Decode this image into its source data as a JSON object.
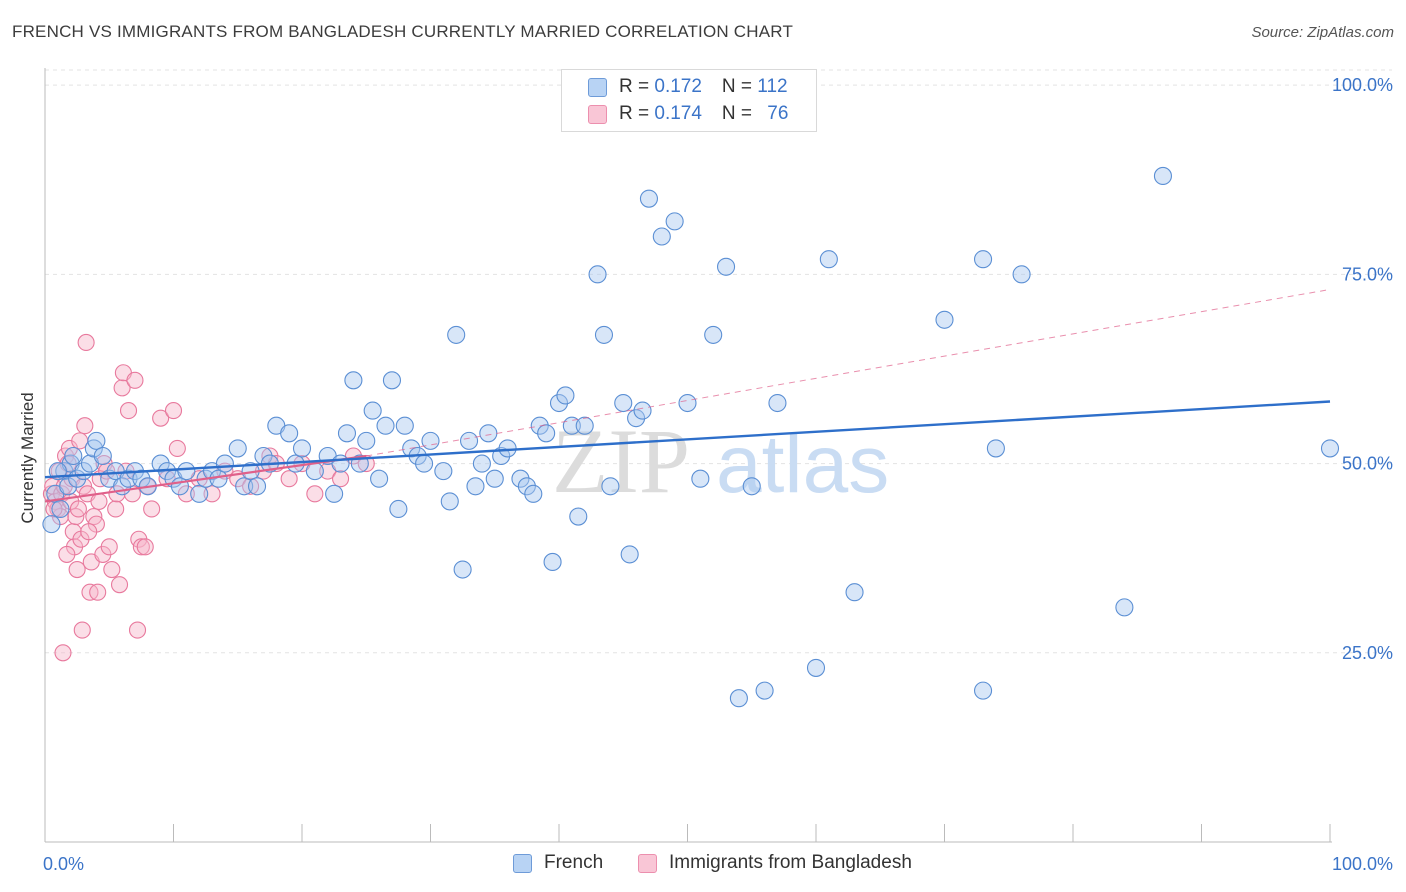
{
  "title": "FRENCH VS IMMIGRANTS FROM BANGLADESH CURRENTLY MARRIED CORRELATION CHART",
  "source": "Source: ZipAtlas.com",
  "watermark": {
    "zip": "ZIP",
    "atlas": "atlas"
  },
  "legend": {
    "french": {
      "r_label": "R = ",
      "r_value": "0.172",
      "n_label": "N = ",
      "n_value": "112"
    },
    "bangladesh": {
      "r_label": "R = ",
      "r_value": "0.174",
      "n_label": "N = ",
      "n_value": "76"
    }
  },
  "colors": {
    "french_fill": "#a9c8f0",
    "french_stroke": "#5b8fd4",
    "french_line": "#2e6fca",
    "bangladesh_fill": "#f7b6ca",
    "bangladesh_stroke": "#e8799d",
    "bangladesh_line": "#e0608a",
    "axis_text": "#3b74c8",
    "grid": "#e3e3e3"
  },
  "chart_data": {
    "type": "scatter",
    "title": "FRENCH VS IMMIGRANTS FROM BANGLADESH CURRENTLY MARRIED CORRELATION CHART",
    "xlabel": "",
    "ylabel": "Currently Married",
    "xlim": [
      0,
      100
    ],
    "ylim": [
      0,
      102
    ],
    "x_tick_labels": [
      "0.0%",
      "100.0%"
    ],
    "y_ticks": [
      25,
      50,
      75,
      100
    ],
    "y_tick_labels": [
      "25.0%",
      "50.0%",
      "75.0%",
      "100.0%"
    ],
    "grid": "horizontal dashed",
    "legend_position": "top-center",
    "series": [
      {
        "name": "French",
        "trend": {
          "x": [
            0,
            100
          ],
          "y": [
            48.2,
            58.2
          ],
          "style": "solid"
        },
        "points": [
          [
            0.5,
            42
          ],
          [
            0.8,
            46
          ],
          [
            1.2,
            44
          ],
          [
            1.5,
            49
          ],
          [
            1.8,
            47
          ],
          [
            2,
            50
          ],
          [
            2.2,
            51
          ],
          [
            2.5,
            48
          ],
          [
            3,
            49
          ],
          [
            3.5,
            50
          ],
          [
            3.8,
            52
          ],
          [
            4,
            53
          ],
          [
            4.5,
            51
          ],
          [
            5,
            48
          ],
          [
            5.5,
            49
          ],
          [
            6,
            47
          ],
          [
            6.5,
            48
          ],
          [
            7,
            49
          ],
          [
            7.5,
            48
          ],
          [
            8,
            47
          ],
          [
            9,
            50
          ],
          [
            9.5,
            49
          ],
          [
            10,
            48
          ],
          [
            10.5,
            47
          ],
          [
            11,
            49
          ],
          [
            12,
            46
          ],
          [
            12.5,
            48
          ],
          [
            13,
            49
          ],
          [
            13.5,
            48
          ],
          [
            14,
            50
          ],
          [
            15,
            52
          ],
          [
            15.5,
            47
          ],
          [
            16,
            49
          ],
          [
            16.5,
            47
          ],
          [
            17,
            51
          ],
          [
            17.5,
            50
          ],
          [
            18,
            55
          ],
          [
            19,
            54
          ],
          [
            19.5,
            50
          ],
          [
            20,
            52
          ],
          [
            21,
            49
          ],
          [
            22,
            51
          ],
          [
            22.5,
            46
          ],
          [
            23,
            50
          ],
          [
            23.5,
            54
          ],
          [
            24,
            61
          ],
          [
            24.5,
            50
          ],
          [
            25,
            53
          ],
          [
            25.5,
            57
          ],
          [
            26,
            48
          ],
          [
            26.5,
            55
          ],
          [
            27,
            61
          ],
          [
            27.5,
            44
          ],
          [
            28,
            55
          ],
          [
            28.5,
            52
          ],
          [
            29,
            51
          ],
          [
            29.5,
            50
          ],
          [
            30,
            53
          ],
          [
            31,
            49
          ],
          [
            31.5,
            45
          ],
          [
            32,
            67
          ],
          [
            32.5,
            36
          ],
          [
            33,
            53
          ],
          [
            33.5,
            47
          ],
          [
            34,
            50
          ],
          [
            34.5,
            54
          ],
          [
            35,
            48
          ],
          [
            35.5,
            51
          ],
          [
            36,
            52
          ],
          [
            37,
            48
          ],
          [
            37.5,
            47
          ],
          [
            38,
            46
          ],
          [
            38.5,
            55
          ],
          [
            39,
            54
          ],
          [
            39.5,
            37
          ],
          [
            40,
            58
          ],
          [
            40.5,
            59
          ],
          [
            41,
            55
          ],
          [
            41.5,
            43
          ],
          [
            42,
            55
          ],
          [
            43,
            75
          ],
          [
            43.5,
            67
          ],
          [
            44,
            47
          ],
          [
            45,
            58
          ],
          [
            45.5,
            38
          ],
          [
            46,
            56
          ],
          [
            46.5,
            57
          ],
          [
            47,
            85
          ],
          [
            48,
            80
          ],
          [
            49,
            82
          ],
          [
            50,
            58
          ],
          [
            51,
            48
          ],
          [
            52,
            67
          ],
          [
            53,
            76
          ],
          [
            54,
            19
          ],
          [
            55,
            47
          ],
          [
            56,
            20
          ],
          [
            57,
            58
          ],
          [
            60,
            23
          ],
          [
            61,
            77
          ],
          [
            63,
            33
          ],
          [
            70,
            69
          ],
          [
            73,
            77
          ],
          [
            73,
            20
          ],
          [
            74,
            52
          ],
          [
            76,
            75
          ],
          [
            84,
            31
          ],
          [
            87,
            88
          ],
          [
            100,
            52
          ],
          [
            1.0,
            49
          ]
        ]
      },
      {
        "name": "Immigrants from Bangladesh",
        "trend": {
          "x": [
            0,
            25
          ],
          "y": [
            45.0,
            51.0
          ],
          "style": "solid"
        },
        "trend_extension": {
          "x": [
            25,
            100
          ],
          "y": [
            51.0,
            73.0
          ],
          "style": "dashed"
        },
        "points": [
          [
            0.5,
            46
          ],
          [
            0.6,
            47
          ],
          [
            0.8,
            45
          ],
          [
            1.0,
            44
          ],
          [
            1.1,
            49
          ],
          [
            1.2,
            43
          ],
          [
            1.3,
            46
          ],
          [
            1.5,
            47
          ],
          [
            1.6,
            51
          ],
          [
            1.8,
            50
          ],
          [
            2.0,
            45
          ],
          [
            2.1,
            48
          ],
          [
            2.2,
            41
          ],
          [
            2.3,
            39
          ],
          [
            2.4,
            43
          ],
          [
            2.5,
            36
          ],
          [
            2.6,
            44
          ],
          [
            2.8,
            40
          ],
          [
            3.0,
            47
          ],
          [
            3.1,
            55
          ],
          [
            3.2,
            66
          ],
          [
            3.3,
            46
          ],
          [
            3.5,
            33
          ],
          [
            3.6,
            37
          ],
          [
            3.8,
            43
          ],
          [
            4.0,
            42
          ],
          [
            4.1,
            33
          ],
          [
            4.3,
            48
          ],
          [
            4.5,
            38
          ],
          [
            4.6,
            50
          ],
          [
            4.8,
            49
          ],
          [
            5.0,
            39
          ],
          [
            5.2,
            36
          ],
          [
            5.5,
            44
          ],
          [
            5.6,
            46
          ],
          [
            5.8,
            34
          ],
          [
            6.0,
            60
          ],
          [
            6.1,
            62
          ],
          [
            6.3,
            49
          ],
          [
            6.5,
            57
          ],
          [
            6.8,
            46
          ],
          [
            7.0,
            61
          ],
          [
            7.2,
            28
          ],
          [
            7.3,
            40
          ],
          [
            7.5,
            39
          ],
          [
            7.8,
            39
          ],
          [
            8.0,
            47
          ],
          [
            8.3,
            44
          ],
          [
            9.0,
            56
          ],
          [
            9.5,
            48
          ],
          [
            10.0,
            57
          ],
          [
            10.3,
            52
          ],
          [
            11,
            46
          ],
          [
            12,
            48
          ],
          [
            13,
            46
          ],
          [
            14,
            49
          ],
          [
            15,
            48
          ],
          [
            16,
            47
          ],
          [
            17,
            49
          ],
          [
            17.5,
            51
          ],
          [
            18,
            50
          ],
          [
            19,
            48
          ],
          [
            20,
            50
          ],
          [
            21,
            46
          ],
          [
            22,
            49
          ],
          [
            23,
            48
          ],
          [
            24,
            51
          ],
          [
            25,
            50
          ],
          [
            1.4,
            25
          ],
          [
            2.9,
            28
          ],
          [
            1.9,
            52
          ],
          [
            0.7,
            44
          ],
          [
            2.7,
            53
          ],
          [
            4.2,
            45
          ],
          [
            3.4,
            41
          ],
          [
            1.7,
            38
          ]
        ]
      }
    ]
  }
}
